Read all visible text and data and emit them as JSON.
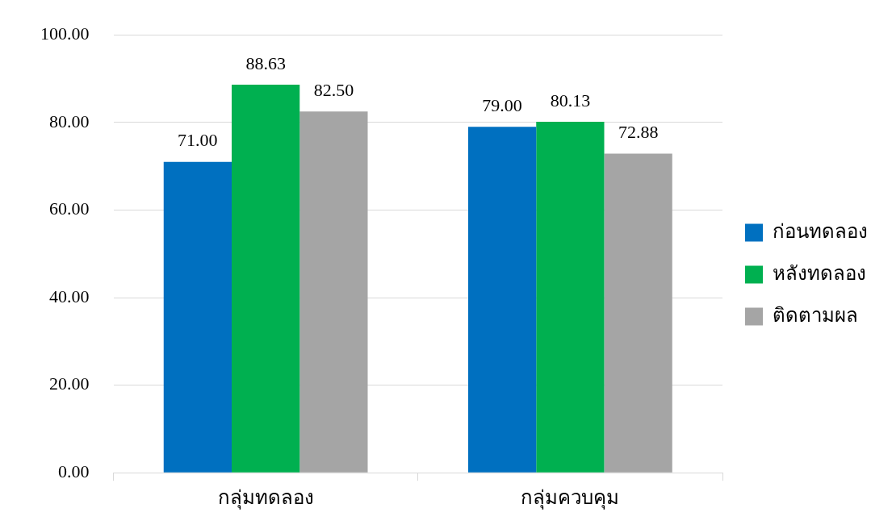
{
  "chart_data": {
    "type": "bar",
    "categories": [
      "กลุ่มทดลอง",
      "กลุ่มควบคุม"
    ],
    "series": [
      {
        "name": "ก่อนทดลอง",
        "color": "#0070c0",
        "values": [
          71.0,
          79.0
        ],
        "value_labels": [
          "71.00",
          "79.00"
        ]
      },
      {
        "name": "หลังทดลอง",
        "color": "#00b050",
        "values": [
          88.63,
          80.13
        ],
        "value_labels": [
          "88.63",
          "80.13"
        ]
      },
      {
        "name": "ติดตามผล",
        "color": "#a5a5a5",
        "values": [
          82.5,
          72.88
        ],
        "value_labels": [
          "82.50",
          "72.88"
        ]
      }
    ],
    "ylim": [
      0,
      100
    ],
    "yticks": [
      {
        "value": 0,
        "label": "0.00"
      },
      {
        "value": 20,
        "label": "20.00"
      },
      {
        "value": 40,
        "label": "40.00"
      },
      {
        "value": 60,
        "label": "60.00"
      },
      {
        "value": 80,
        "label": "80.00"
      },
      {
        "value": 100,
        "label": "100.00"
      }
    ],
    "grid": "y",
    "legend": "right"
  }
}
